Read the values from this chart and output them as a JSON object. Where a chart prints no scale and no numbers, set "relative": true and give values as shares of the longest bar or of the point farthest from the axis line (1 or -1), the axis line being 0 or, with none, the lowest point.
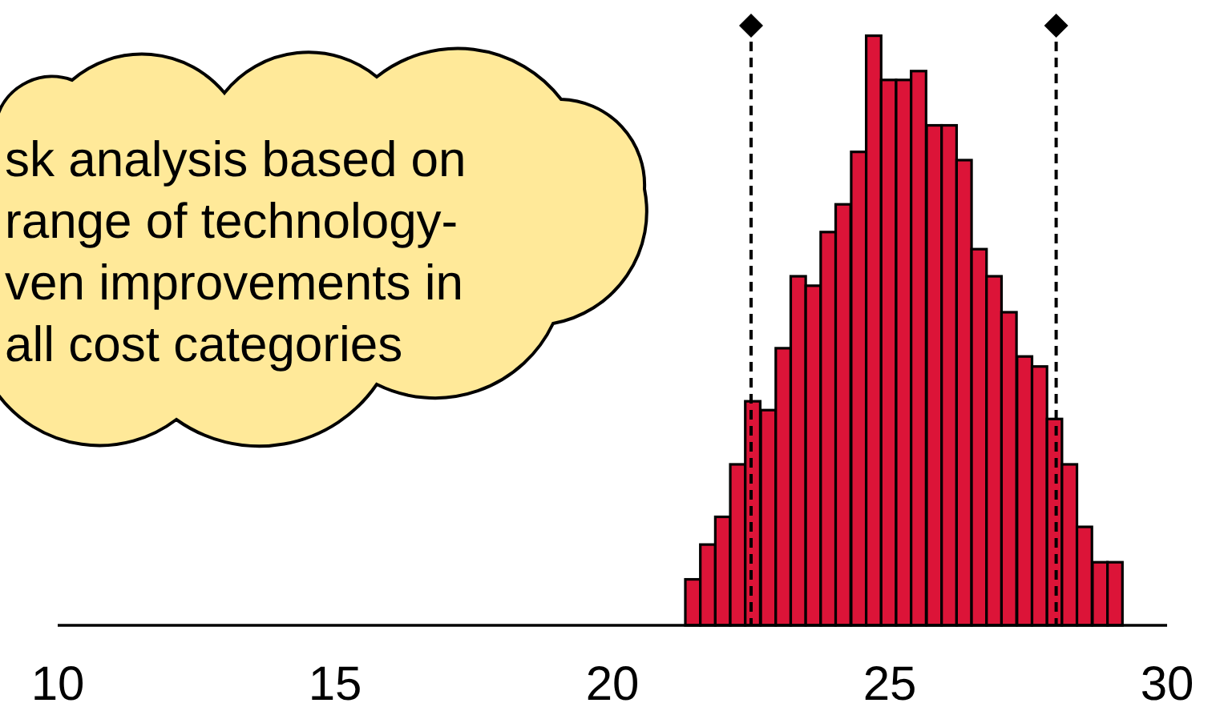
{
  "chart_data": {
    "type": "bar",
    "relative": true,
    "color": "#dc1438",
    "x": [
      21.45,
      21.72,
      21.99,
      22.26,
      22.53,
      22.81,
      23.08,
      23.35,
      23.62,
      23.89,
      24.16,
      24.44,
      24.71,
      24.98,
      25.25,
      25.52,
      25.8,
      26.07,
      26.34,
      26.61,
      26.88,
      27.15,
      27.43,
      27.7,
      27.97,
      28.24,
      28.51,
      28.79,
      29.06
    ],
    "values": [
      0.078,
      0.137,
      0.184,
      0.273,
      0.38,
      0.365,
      0.47,
      0.592,
      0.576,
      0.667,
      0.714,
      0.803,
      1,
      0.925,
      0.925,
      0.94,
      0.848,
      0.848,
      0.789,
      0.638,
      0.592,
      0.531,
      0.456,
      0.439,
      0.35,
      0.273,
      0.167,
      0.107,
      0.107
    ],
    "xlim": [
      10,
      30
    ],
    "xticks": [
      10,
      15,
      20,
      25,
      30
    ],
    "ref_lines": [
      {
        "axis": "x",
        "value": 22.5,
        "color": "#000000",
        "line_style": "dashed"
      },
      {
        "axis": "x",
        "value": 28,
        "color": "#000000",
        "line_style": "dashed"
      }
    ],
    "annotations": [
      "sk analysis based on\nrange of technology-\nven improvements in\nall cost categories"
    ]
  }
}
